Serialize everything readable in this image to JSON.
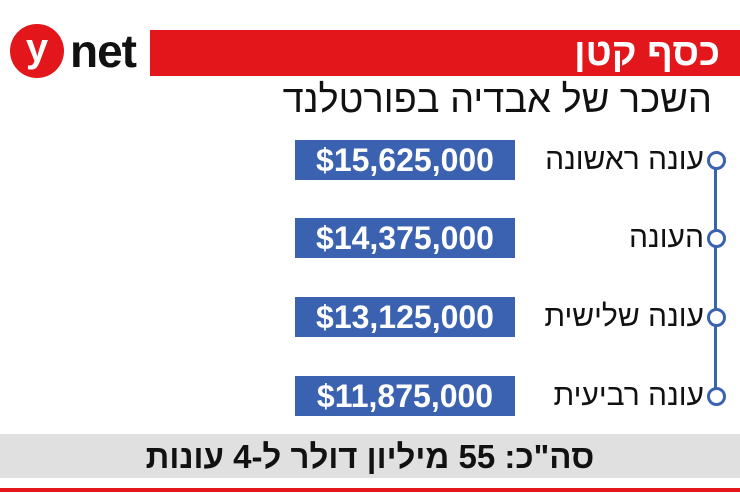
{
  "brand": {
    "logo_letter": "y",
    "logo_text": "net",
    "accent_color": "#e3161b"
  },
  "header": {
    "title": "כסף קטן",
    "subtitle": "השכר של אבדיה בפורטלנד"
  },
  "timeline": {
    "color": "#3a62b0",
    "rows": [
      {
        "label": "עונה ראשונה",
        "amount": "$15,625,000"
      },
      {
        "label": "העונה",
        "amount": "$14,375,000"
      },
      {
        "label": "עונה שלישית",
        "amount": "$13,125,000"
      },
      {
        "label": "עונה רביעית",
        "amount": "$11,875,000"
      }
    ]
  },
  "footer": {
    "total": "סה\"כ: 55 מיליון דולר ל-4 עונות"
  }
}
